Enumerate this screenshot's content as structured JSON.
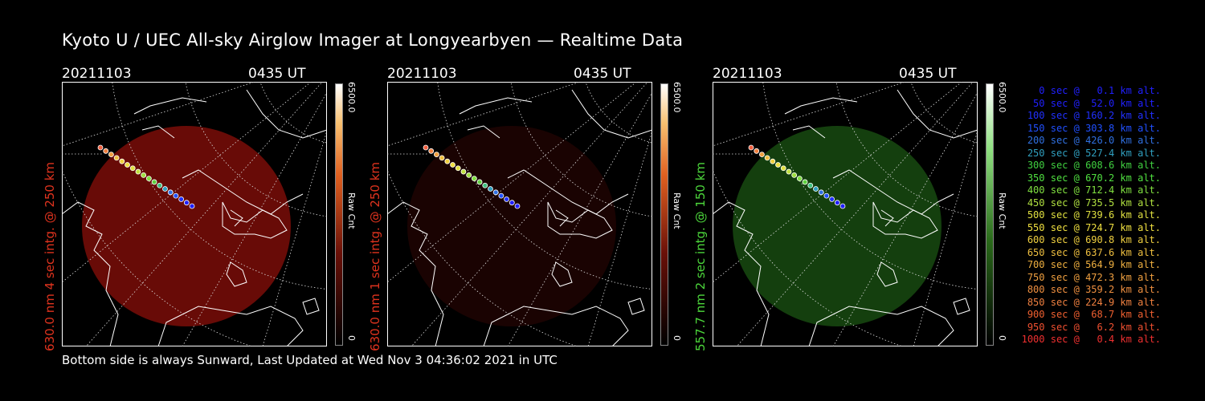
{
  "title": "Kyoto U / UEC All-sky Airglow Imager at Longyearbyen — Realtime Data",
  "footer": "Bottom side is always Sunward, Last Updated at Wed Nov  3 04:36:02 2021 in UTC",
  "panels": [
    {
      "date": "20211103",
      "time": "0435 UT",
      "side_label": "630.0 nm 4 sec intg. @ 250 km",
      "side_color": "#e0331e",
      "cbar_top": "6500.0",
      "cbar_mid": "Raw Cnt",
      "cbar_bottom": "0",
      "glow": "#8b0f0a",
      "glow_opacity": 0.75,
      "cbar_gradient": "red"
    },
    {
      "date": "20211103",
      "time": "0435 UT",
      "side_label": "630.0 nm 1 sec intg. @ 250 km",
      "side_color": "#e0331e",
      "cbar_top": "6500.0",
      "cbar_mid": "Raw Cnt",
      "cbar_bottom": "0",
      "glow": "#3a0604",
      "glow_opacity": 0.45,
      "cbar_gradient": "red"
    },
    {
      "date": "20211103",
      "time": "0435 UT",
      "side_label": "557.7 nm 2 sec intg. @ 150 km",
      "side_color": "#4cd63b",
      "cbar_top": "6500.0",
      "cbar_mid": "Raw Cnt",
      "cbar_bottom": "0",
      "glow": "#1d5a14",
      "glow_opacity": 0.7,
      "cbar_gradient": "green"
    }
  ],
  "legend": [
    {
      "text": "0 sec @   0.1 km alt.",
      "color": "#2020ff"
    },
    {
      "text": "50 sec @  52.0 km alt.",
      "color": "#2020ff"
    },
    {
      "text": "100 sec @ 160.2 km alt.",
      "color": "#2030ff"
    },
    {
      "text": "150 sec @ 303.8 km alt.",
      "color": "#2050ff"
    },
    {
      "text": "200 sec @ 426.0 km alt.",
      "color": "#3070e0"
    },
    {
      "text": "250 sec @ 527.4 km alt.",
      "color": "#30a0c0"
    },
    {
      "text": "300 sec @ 608.6 km alt.",
      "color": "#40d040"
    },
    {
      "text": "350 sec @ 670.2 km alt.",
      "color": "#50e040"
    },
    {
      "text": "400 sec @ 712.4 km alt.",
      "color": "#80e040"
    },
    {
      "text": "450 sec @ 735.5 km alt.",
      "color": "#b0e040"
    },
    {
      "text": "500 sec @ 739.6 km alt.",
      "color": "#e0e040"
    },
    {
      "text": "550 sec @ 724.7 km alt.",
      "color": "#f0e040"
    },
    {
      "text": "600 sec @ 690.8 km alt.",
      "color": "#f0d040"
    },
    {
      "text": "650 sec @ 637.6 km alt.",
      "color": "#f0c040"
    },
    {
      "text": "700 sec @ 564.9 km alt.",
      "color": "#f0b040"
    },
    {
      "text": "750 sec @ 472.3 km alt.",
      "color": "#f0a040"
    },
    {
      "text": "800 sec @ 359.2 km alt.",
      "color": "#f09040"
    },
    {
      "text": "850 sec @ 224.9 km alt.",
      "color": "#f08040"
    },
    {
      "text": "900 sec @  68.7 km alt.",
      "color": "#f06030"
    },
    {
      "text": "950 sec @   6.2 km alt.",
      "color": "#f05030"
    },
    {
      "text": "1000 sec @   0.4 km alt.",
      "color": "#f03030"
    }
  ],
  "trajectory_colors": [
    "#f06040",
    "#f08040",
    "#f0a040",
    "#f0c040",
    "#f0d040",
    "#f0e040",
    "#e0e040",
    "#c0e040",
    "#a0e040",
    "#80e040",
    "#60d040",
    "#40c080",
    "#30a0c0",
    "#3070e0",
    "#2050ff",
    "#2030ff",
    "#2020ff",
    "#2020ff"
  ]
}
